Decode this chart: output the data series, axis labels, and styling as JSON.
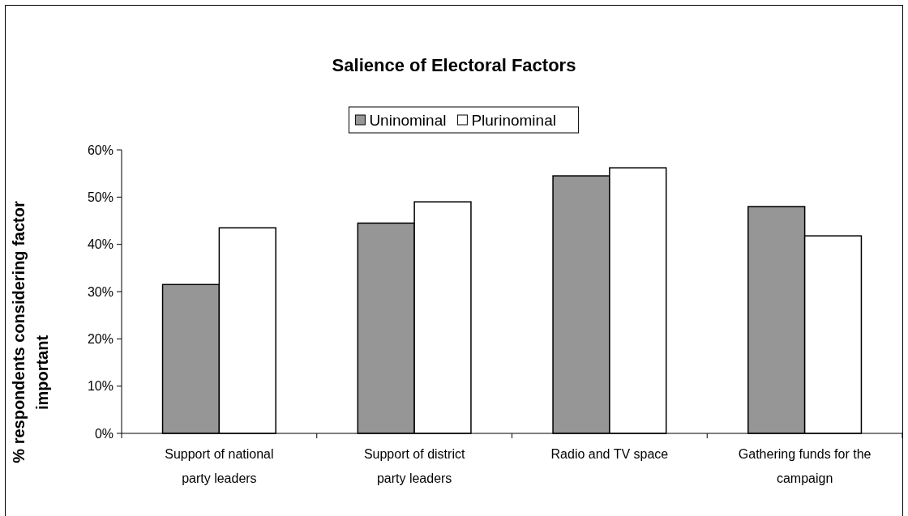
{
  "chart_data": {
    "type": "bar",
    "title": "Salience of Electoral Factors",
    "ylabel": "% respondents considering factor important",
    "categories": [
      "Support of national party leaders",
      "Support of district party leaders",
      "Radio and TV space",
      "Gathering funds for the campaign"
    ],
    "series": [
      {
        "name": "Uninominal",
        "color": "#969696",
        "values": [
          31.5,
          44.5,
          54.5,
          48.0
        ]
      },
      {
        "name": "Plurinominal",
        "color": "#ffffff",
        "values": [
          43.5,
          49.0,
          56.2,
          41.8
        ]
      }
    ],
    "ylim": [
      0,
      60
    ],
    "yticks": [
      {
        "value": 0,
        "label": "0%"
      },
      {
        "value": 10,
        "label": "10%"
      },
      {
        "value": 20,
        "label": "20%"
      },
      {
        "value": 30,
        "label": "30%"
      },
      {
        "value": 40,
        "label": "40%"
      },
      {
        "value": 50,
        "label": "50%"
      },
      {
        "value": 60,
        "label": "60%"
      }
    ],
    "grid": false,
    "legend": "top"
  }
}
